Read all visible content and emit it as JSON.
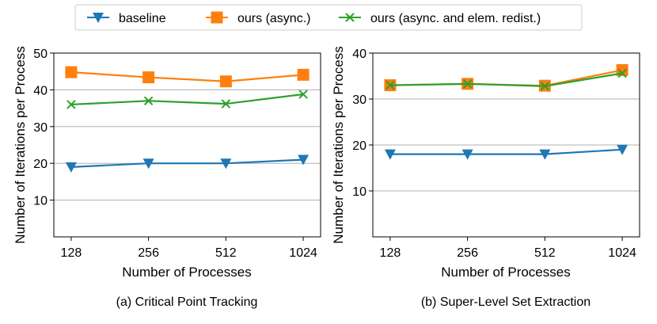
{
  "legend": {
    "items": [
      {
        "label": "baseline",
        "color": "#1f77b4",
        "marker": "triangle-down"
      },
      {
        "label": "ours (async.)",
        "color": "#ff7f0e",
        "marker": "square"
      },
      {
        "label": "ours (async. and elem. redist.)",
        "color": "#2ca02c",
        "marker": "x"
      }
    ]
  },
  "chart_data": [
    {
      "type": "line",
      "caption": "(a) Critical Point Tracking",
      "xlabel": "Number of Processes",
      "ylabel": "Number of Iterations per Process",
      "categories": [
        "128",
        "256",
        "512",
        "1024"
      ],
      "ylim": [
        0,
        50
      ],
      "yticks": [
        10,
        20,
        30,
        40,
        50
      ],
      "grid": "horizontal",
      "series": [
        {
          "name": "baseline",
          "values": [
            19,
            20,
            20,
            21
          ]
        },
        {
          "name": "ours (async.)",
          "values": [
            44.8,
            43.4,
            42.3,
            44.1
          ]
        },
        {
          "name": "ours (async. and elem. redist.)",
          "values": [
            36,
            37,
            36.2,
            38.8
          ]
        }
      ]
    },
    {
      "type": "line",
      "caption": "(b) Super-Level Set Extraction",
      "xlabel": "Number of Processes",
      "ylabel": "Number of Iterations per Process",
      "categories": [
        "128",
        "256",
        "512",
        "1024"
      ],
      "ylim": [
        0,
        40
      ],
      "yticks": [
        10,
        20,
        30,
        40
      ],
      "grid": "horizontal",
      "series": [
        {
          "name": "baseline",
          "values": [
            18,
            18,
            18,
            19
          ]
        },
        {
          "name": "ours (async.)",
          "values": [
            33,
            33.3,
            32.9,
            36.3
          ]
        },
        {
          "name": "ours (async. and elem. redist.)",
          "values": [
            33,
            33.3,
            32.8,
            35.6
          ]
        }
      ]
    }
  ]
}
